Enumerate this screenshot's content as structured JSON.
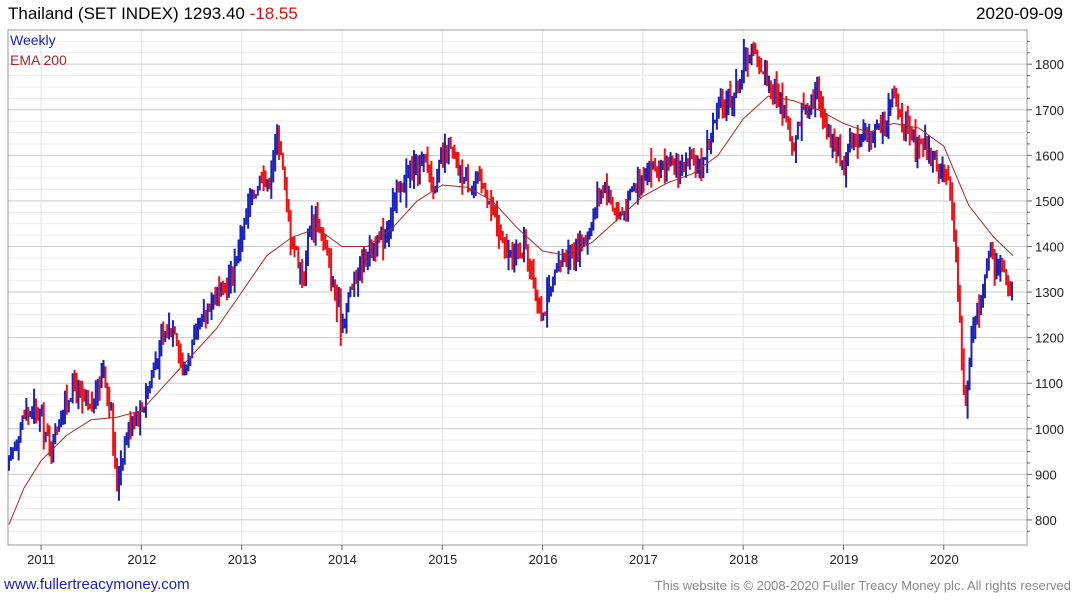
{
  "header": {
    "name": "Thailand (SET INDEX)",
    "price": "1293.40",
    "change": "-18.55",
    "date": "2020-09-09"
  },
  "legend": {
    "series": "Weekly",
    "indicator": "EMA 200"
  },
  "footer": {
    "link": "www.fullertreacymoney.com",
    "copyright": "This website is © 2008-2020 Fuller Treacy Money plc. All rights reserved"
  },
  "colors": {
    "up": "#1a22bb",
    "down": "#ee1111",
    "ema": "#a52a2a",
    "grid": "#cccccc"
  },
  "chart_data": {
    "type": "line",
    "grid": true,
    "y_axis_position": "right",
    "ylim": [
      745,
      1875
    ],
    "yticks": [
      800,
      900,
      1000,
      1100,
      1200,
      1300,
      1400,
      1500,
      1600,
      1700,
      1800
    ],
    "xlim": [
      2010.67,
      2020.83
    ],
    "xticks": [
      {
        "year": 2011,
        "label": "2011"
      },
      {
        "year": 2012,
        "label": "2012"
      },
      {
        "year": 2013,
        "label": "2013"
      },
      {
        "year": 2014,
        "label": "2014"
      },
      {
        "year": 2015,
        "label": "2015"
      },
      {
        "year": 2016,
        "label": "2016"
      },
      {
        "year": 2017,
        "label": "2017"
      },
      {
        "year": 2018,
        "label": "2018"
      },
      {
        "year": 2019,
        "label": "2019"
      },
      {
        "year": 2020,
        "label": "2020"
      }
    ],
    "series": [
      {
        "name": "Weekly",
        "style": "bars",
        "points": [
          [
            2010.68,
            925
          ],
          [
            2010.75,
            975
          ],
          [
            2010.83,
            1030
          ],
          [
            2010.92,
            1040
          ],
          [
            2011.0,
            1030
          ],
          [
            2011.08,
            960
          ],
          [
            2011.17,
            1010
          ],
          [
            2011.25,
            1060
          ],
          [
            2011.33,
            1100
          ],
          [
            2011.42,
            1060
          ],
          [
            2011.5,
            1040
          ],
          [
            2011.58,
            1100
          ],
          [
            2011.62,
            1140
          ],
          [
            2011.67,
            1070
          ],
          [
            2011.7,
            1040
          ],
          [
            2011.75,
            870
          ],
          [
            2011.79,
            920
          ],
          [
            2011.83,
            970
          ],
          [
            2011.92,
            1030
          ],
          [
            2012.0,
            1040
          ],
          [
            2012.08,
            1100
          ],
          [
            2012.17,
            1170
          ],
          [
            2012.25,
            1210
          ],
          [
            2012.33,
            1230
          ],
          [
            2012.38,
            1170
          ],
          [
            2012.42,
            1120
          ],
          [
            2012.5,
            1180
          ],
          [
            2012.58,
            1220
          ],
          [
            2012.67,
            1270
          ],
          [
            2012.75,
            1300
          ],
          [
            2012.83,
            1300
          ],
          [
            2012.92,
            1350
          ],
          [
            2013.0,
            1430
          ],
          [
            2013.08,
            1490
          ],
          [
            2013.17,
            1540
          ],
          [
            2013.21,
            1580
          ],
          [
            2013.25,
            1520
          ],
          [
            2013.33,
            1620
          ],
          [
            2013.38,
            1640
          ],
          [
            2013.46,
            1460
          ],
          [
            2013.5,
            1420
          ],
          [
            2013.58,
            1360
          ],
          [
            2013.62,
            1320
          ],
          [
            2013.67,
            1450
          ],
          [
            2013.75,
            1460
          ],
          [
            2013.83,
            1400
          ],
          [
            2013.92,
            1300
          ],
          [
            2014.0,
            1230
          ],
          [
            2014.08,
            1300
          ],
          [
            2014.17,
            1350
          ],
          [
            2014.25,
            1390
          ],
          [
            2014.33,
            1400
          ],
          [
            2014.42,
            1420
          ],
          [
            2014.5,
            1490
          ],
          [
            2014.58,
            1530
          ],
          [
            2014.67,
            1560
          ],
          [
            2014.75,
            1580
          ],
          [
            2014.83,
            1590
          ],
          [
            2014.92,
            1530
          ],
          [
            2015.0,
            1590
          ],
          [
            2015.08,
            1610
          ],
          [
            2015.17,
            1560
          ],
          [
            2015.25,
            1540
          ],
          [
            2015.33,
            1540
          ],
          [
            2015.42,
            1530
          ],
          [
            2015.5,
            1480
          ],
          [
            2015.58,
            1420
          ],
          [
            2015.67,
            1370
          ],
          [
            2015.75,
            1390
          ],
          [
            2015.83,
            1410
          ],
          [
            2015.92,
            1300
          ],
          [
            2016.0,
            1250
          ],
          [
            2016.08,
            1300
          ],
          [
            2016.17,
            1360
          ],
          [
            2016.25,
            1390
          ],
          [
            2016.33,
            1390
          ],
          [
            2016.42,
            1410
          ],
          [
            2016.5,
            1460
          ],
          [
            2016.58,
            1530
          ],
          [
            2016.62,
            1540
          ],
          [
            2016.67,
            1500
          ],
          [
            2016.75,
            1470
          ],
          [
            2016.83,
            1480
          ],
          [
            2016.92,
            1540
          ],
          [
            2017.0,
            1560
          ],
          [
            2017.08,
            1580
          ],
          [
            2017.17,
            1560
          ],
          [
            2017.25,
            1570
          ],
          [
            2017.33,
            1570
          ],
          [
            2017.42,
            1580
          ],
          [
            2017.5,
            1580
          ],
          [
            2017.58,
            1570
          ],
          [
            2017.67,
            1640
          ],
          [
            2017.75,
            1700
          ],
          [
            2017.83,
            1720
          ],
          [
            2017.92,
            1740
          ],
          [
            2018.0,
            1800
          ],
          [
            2018.08,
            1830
          ],
          [
            2018.17,
            1800
          ],
          [
            2018.25,
            1760
          ],
          [
            2018.33,
            1730
          ],
          [
            2018.42,
            1700
          ],
          [
            2018.5,
            1600
          ],
          [
            2018.58,
            1700
          ],
          [
            2018.67,
            1720
          ],
          [
            2018.75,
            1740
          ],
          [
            2018.83,
            1660
          ],
          [
            2018.92,
            1620
          ],
          [
            2019.0,
            1580
          ],
          [
            2019.08,
            1640
          ],
          [
            2019.17,
            1640
          ],
          [
            2019.25,
            1630
          ],
          [
            2019.33,
            1660
          ],
          [
            2019.42,
            1670
          ],
          [
            2019.5,
            1730
          ],
          [
            2019.58,
            1680
          ],
          [
            2019.67,
            1640
          ],
          [
            2019.75,
            1620
          ],
          [
            2019.83,
            1610
          ],
          [
            2019.92,
            1580
          ],
          [
            2020.0,
            1570
          ],
          [
            2020.08,
            1500
          ],
          [
            2020.12,
            1400
          ],
          [
            2020.17,
            1200
          ],
          [
            2020.21,
            1040
          ],
          [
            2020.25,
            1120
          ],
          [
            2020.29,
            1220
          ],
          [
            2020.33,
            1260
          ],
          [
            2020.38,
            1300
          ],
          [
            2020.42,
            1330
          ],
          [
            2020.46,
            1420
          ],
          [
            2020.5,
            1360
          ],
          [
            2020.58,
            1370
          ],
          [
            2020.62,
            1340
          ],
          [
            2020.67,
            1320
          ],
          [
            2020.69,
            1293
          ]
        ]
      },
      {
        "name": "EMA 200",
        "style": "line",
        "points": [
          [
            2010.68,
            790
          ],
          [
            2010.83,
            870
          ],
          [
            2011.0,
            930
          ],
          [
            2011.25,
            985
          ],
          [
            2011.5,
            1020
          ],
          [
            2011.75,
            1025
          ],
          [
            2012.0,
            1040
          ],
          [
            2012.25,
            1100
          ],
          [
            2012.5,
            1160
          ],
          [
            2012.75,
            1220
          ],
          [
            2013.0,
            1300
          ],
          [
            2013.25,
            1380
          ],
          [
            2013.5,
            1420
          ],
          [
            2013.75,
            1440
          ],
          [
            2014.0,
            1400
          ],
          [
            2014.25,
            1400
          ],
          [
            2014.5,
            1440
          ],
          [
            2014.75,
            1500
          ],
          [
            2015.0,
            1535
          ],
          [
            2015.25,
            1530
          ],
          [
            2015.5,
            1500
          ],
          [
            2015.75,
            1440
          ],
          [
            2016.0,
            1390
          ],
          [
            2016.25,
            1380
          ],
          [
            2016.5,
            1410
          ],
          [
            2016.75,
            1460
          ],
          [
            2017.0,
            1510
          ],
          [
            2017.25,
            1540
          ],
          [
            2017.5,
            1560
          ],
          [
            2017.75,
            1600
          ],
          [
            2018.0,
            1680
          ],
          [
            2018.25,
            1730
          ],
          [
            2018.5,
            1720
          ],
          [
            2018.75,
            1700
          ],
          [
            2019.0,
            1670
          ],
          [
            2019.25,
            1650
          ],
          [
            2019.5,
            1670
          ],
          [
            2019.75,
            1660
          ],
          [
            2020.0,
            1620
          ],
          [
            2020.25,
            1490
          ],
          [
            2020.5,
            1420
          ],
          [
            2020.69,
            1380
          ]
        ]
      }
    ]
  }
}
